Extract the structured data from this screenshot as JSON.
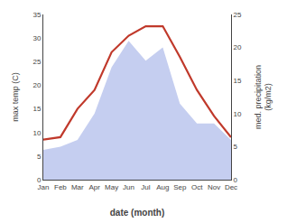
{
  "chart_data": {
    "type": "line",
    "categories": [
      "Jan",
      "Feb",
      "Mar",
      "Apr",
      "May",
      "Jun",
      "Jul",
      "Aug",
      "Sep",
      "Oct",
      "Nov",
      "Dec"
    ],
    "xlabel": "date (month)",
    "ylabel": "max temp (C)",
    "y2label": "med. precipitation\n(kg/m2)",
    "series": [
      {
        "type": "area",
        "axis": "y2",
        "color": "#c5cef0",
        "values": [
          4.5,
          5.0,
          6.0,
          10.0,
          17.0,
          21.0,
          18.0,
          20.0,
          11.5,
          8.5,
          8.5,
          6.0
        ]
      },
      {
        "type": "line",
        "color": "#c0392b",
        "values": [
          8.5,
          9.0,
          15.0,
          19.0,
          27.0,
          30.5,
          32.5,
          32.5,
          26.0,
          19.0,
          13.5,
          9.0
        ]
      }
    ],
    "ylim": [
      0,
      35
    ],
    "yticks": [
      0,
      5,
      10,
      15,
      20,
      25,
      30,
      35
    ],
    "y2lim": [
      0,
      25
    ],
    "y2ticks": [
      0,
      5,
      10,
      15,
      20,
      25
    ],
    "grid": false
  }
}
